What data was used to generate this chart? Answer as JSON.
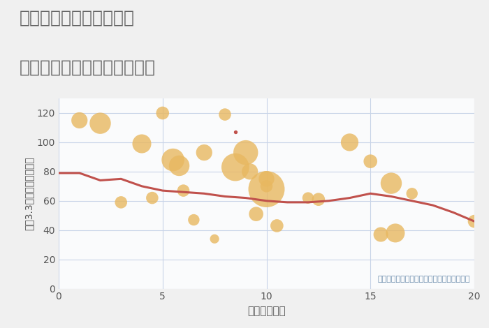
{
  "title_line1": "三重県四日市市新浜町の",
  "title_line2": "駅距離別中古マンション価格",
  "xlabel": "駅距離（分）",
  "ylabel": "坪（3.3㎡）単価（万円）",
  "annotation": "円の大きさは、取引のあった物件面積を示す",
  "bg_color": "#f0f0f0",
  "plot_bg_color": "#fafbfc",
  "grid_color": "#c8d4e8",
  "bubble_color": "#e8b860",
  "bubble_alpha": 0.8,
  "line_color": "#c0514c",
  "line_width": 2.2,
  "xlim": [
    0,
    20
  ],
  "ylim": [
    0,
    130
  ],
  "xticks": [
    0,
    5,
    10,
    15,
    20
  ],
  "yticks": [
    0,
    20,
    40,
    60,
    80,
    100,
    120
  ],
  "scatter_x": [
    1,
    2,
    3,
    4,
    4.5,
    5,
    5.5,
    5.8,
    6,
    6.5,
    7,
    7.5,
    8,
    8.5,
    9,
    9.2,
    9.5,
    10,
    10,
    10,
    10.5,
    12,
    12.5,
    14,
    15,
    15.5,
    16,
    16.2,
    17,
    20
  ],
  "scatter_y": [
    115,
    113,
    59,
    99,
    62,
    120,
    88,
    84,
    67,
    47,
    93,
    34,
    119,
    83,
    93,
    80,
    51,
    75,
    70,
    68,
    43,
    62,
    61,
    100,
    87,
    37,
    72,
    38,
    65,
    46
  ],
  "scatter_s": [
    280,
    480,
    160,
    380,
    160,
    180,
    550,
    450,
    160,
    140,
    280,
    90,
    160,
    820,
    650,
    280,
    220,
    260,
    160,
    1400,
    180,
    140,
    180,
    330,
    200,
    230,
    480,
    380,
    140,
    180
  ],
  "line_x": [
    0,
    1,
    2,
    3,
    4,
    5,
    6,
    7,
    8,
    9,
    10,
    11,
    12,
    13,
    14,
    15,
    16,
    17,
    18,
    19,
    20
  ],
  "line_y": [
    79,
    79,
    74,
    75,
    70,
    67,
    66,
    65,
    63,
    62,
    60,
    59,
    59,
    60,
    62,
    65,
    63,
    60,
    57,
    52,
    46
  ],
  "small_dot_x": 8.5,
  "small_dot_y": 107,
  "small_dot_color": "#c0514c",
  "small_dot_size": 8,
  "title_color": "#666666",
  "title_fontsize": 18,
  "axis_label_color": "#555555",
  "tick_color": "#555555",
  "annotation_color": "#6688aa"
}
